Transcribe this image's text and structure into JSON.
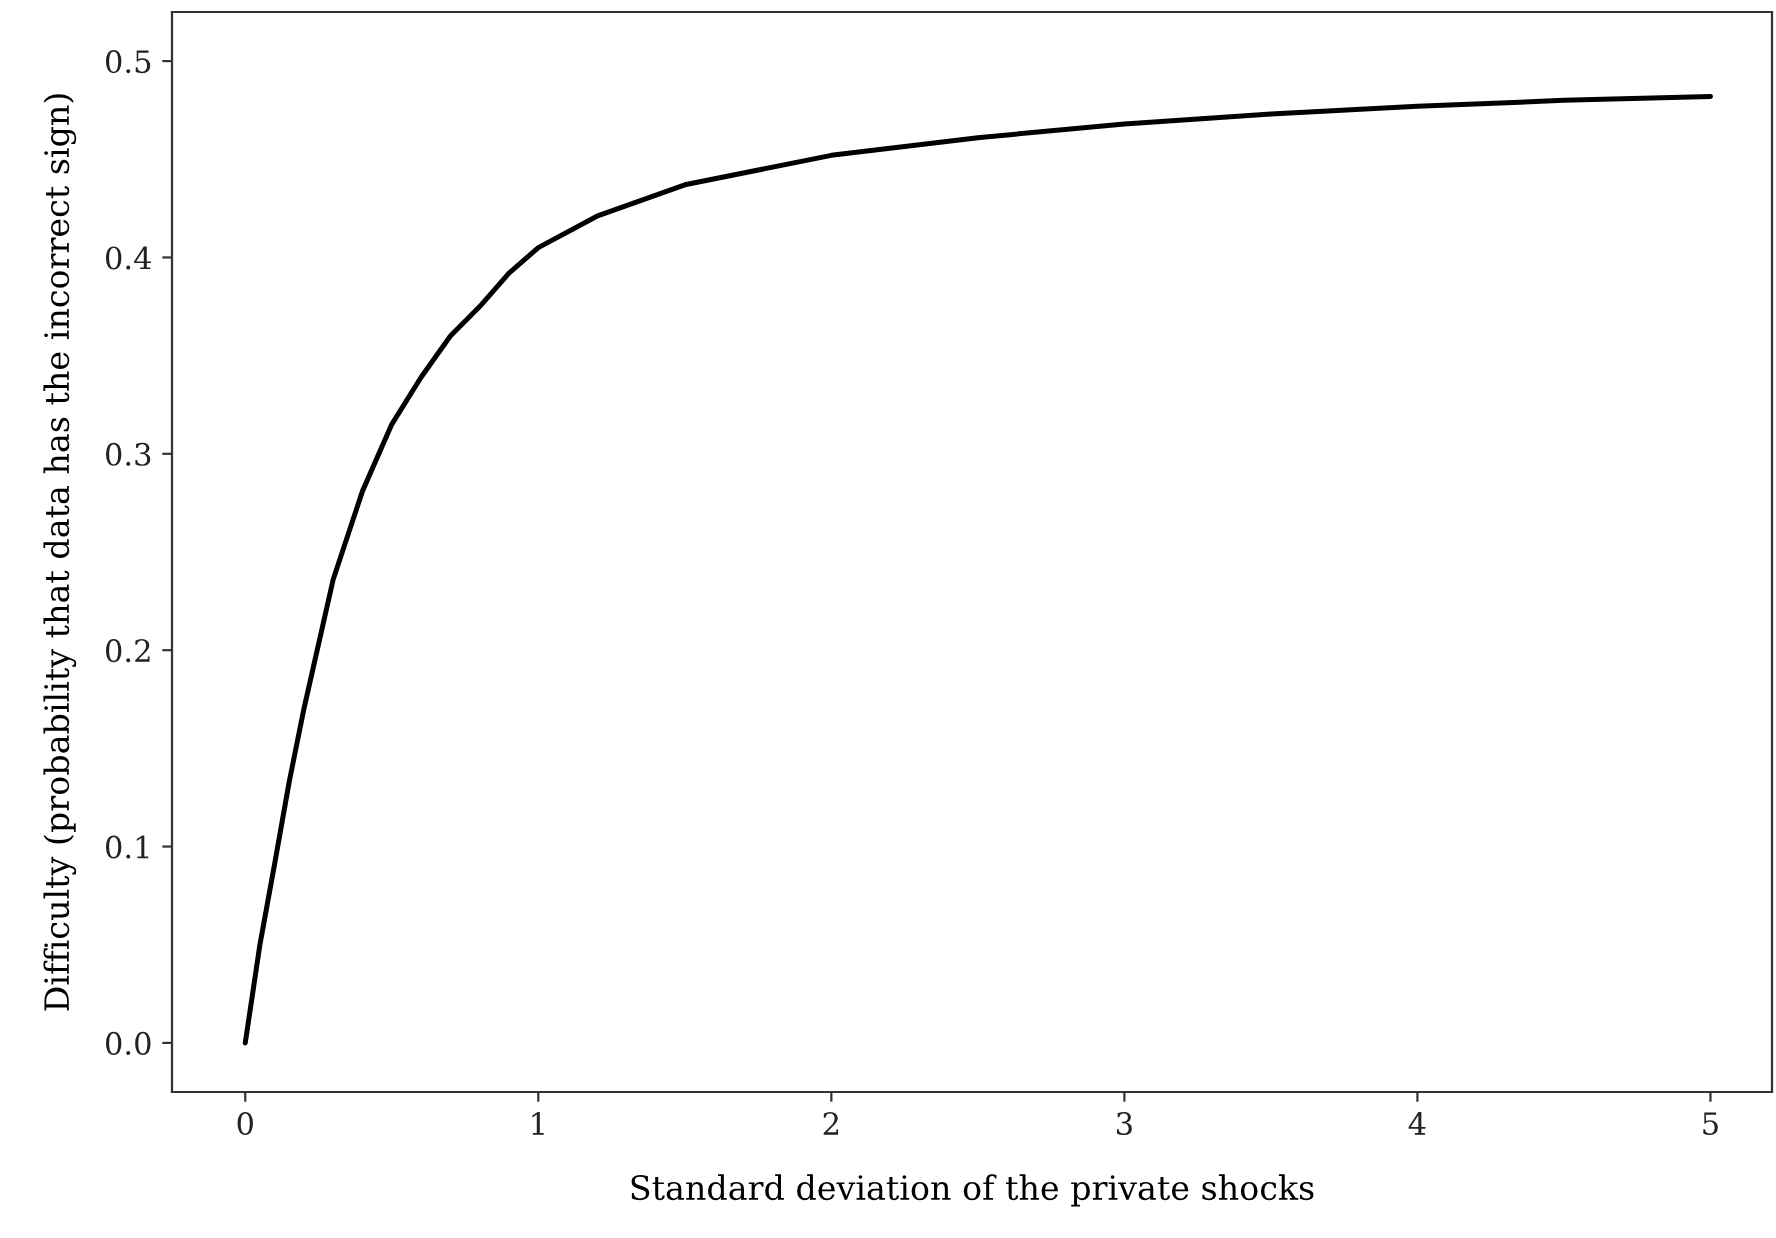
{
  "chart_data": {
    "type": "line",
    "xlabel": "Standard deviation of the private shocks",
    "ylabel": "Difficulty (probability that data has the incorrect sign)",
    "x": [
      0,
      0.05,
      0.1,
      0.15,
      0.2,
      0.3,
      0.4,
      0.5,
      0.6,
      0.7,
      0.8,
      0.9,
      1.0,
      1.2,
      1.5,
      2.0,
      2.5,
      3.0,
      3.5,
      4.0,
      4.5,
      5.0
    ],
    "series": [
      {
        "color": "#000000",
        "values": [
          0.0,
          0.05,
          0.091,
          0.133,
          0.17,
          0.236,
          0.281,
          0.315,
          0.339,
          0.36,
          0.375,
          0.392,
          0.405,
          0.421,
          0.437,
          0.452,
          0.461,
          0.468,
          0.473,
          0.477,
          0.48,
          0.482
        ]
      }
    ],
    "xlim": [
      -0.25,
      5.21
    ],
    "ylim": [
      -0.025,
      0.525
    ],
    "xticks": [
      0,
      1,
      2,
      3,
      4,
      5
    ],
    "yticks": [
      {
        "value": 0,
        "label": "0.0"
      },
      0.1,
      0.2,
      0.3,
      0.4,
      0.5
    ],
    "grid": false,
    "legend": false
  }
}
